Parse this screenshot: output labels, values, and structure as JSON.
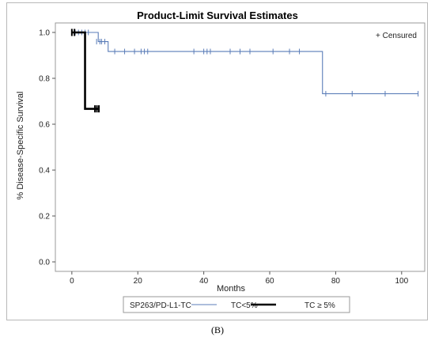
{
  "chart_data": {
    "type": "line",
    "step": true,
    "title": "Product-Limit Survival Estimates",
    "xlabel": "Months",
    "ylabel": "% Disease-Specific Survival",
    "xlim": [
      -5,
      107
    ],
    "ylim": [
      0,
      1.0
    ],
    "xticks": [
      0,
      20,
      40,
      60,
      80,
      100
    ],
    "yticks": [
      0.0,
      0.2,
      0.4,
      0.6,
      0.8,
      1.0
    ],
    "ytick_labels": [
      "0.0",
      "0.2",
      "0.4",
      "0.6",
      "0.8",
      "1.0"
    ],
    "inset_legend": "+ Censured",
    "legend_title": "SP263/PD-L1-TC",
    "legend_position": "bottom",
    "series": [
      {
        "name": "TC<5%",
        "color": "#5b7db8",
        "steps": [
          [
            0,
            1.0
          ],
          [
            8,
            0.96
          ],
          [
            11,
            0.917
          ],
          [
            76,
            0.733
          ],
          [
            105,
            0.733
          ]
        ],
        "censored": [
          [
            1,
            1.0
          ],
          [
            2,
            1.0
          ],
          [
            3,
            1.0
          ],
          [
            4,
            1.0
          ],
          [
            5,
            1.0
          ],
          [
            7.5,
            0.96
          ],
          [
            8.5,
            0.96
          ],
          [
            9,
            0.96
          ],
          [
            10,
            0.96
          ],
          [
            13,
            0.917
          ],
          [
            16,
            0.917
          ],
          [
            19,
            0.917
          ],
          [
            21,
            0.917
          ],
          [
            22,
            0.917
          ],
          [
            23,
            0.917
          ],
          [
            37,
            0.917
          ],
          [
            40,
            0.917
          ],
          [
            41,
            0.917
          ],
          [
            42,
            0.917
          ],
          [
            48,
            0.917
          ],
          [
            51,
            0.917
          ],
          [
            54,
            0.917
          ],
          [
            61,
            0.917
          ],
          [
            66,
            0.917
          ],
          [
            69,
            0.917
          ],
          [
            77,
            0.733
          ],
          [
            85,
            0.733
          ],
          [
            95,
            0.733
          ],
          [
            105,
            0.733
          ]
        ]
      },
      {
        "name": "TC ≥ 5%",
        "color": "#000000",
        "steps": [
          [
            0,
            1.0
          ],
          [
            4,
            0.667
          ],
          [
            8,
            0.667
          ]
        ],
        "censored": [
          [
            0,
            1.0
          ],
          [
            0.8,
            1.0
          ],
          [
            7,
            0.667
          ],
          [
            7.6,
            0.667
          ],
          [
            8.2,
            0.667
          ]
        ]
      }
    ]
  },
  "caption": "(B)"
}
